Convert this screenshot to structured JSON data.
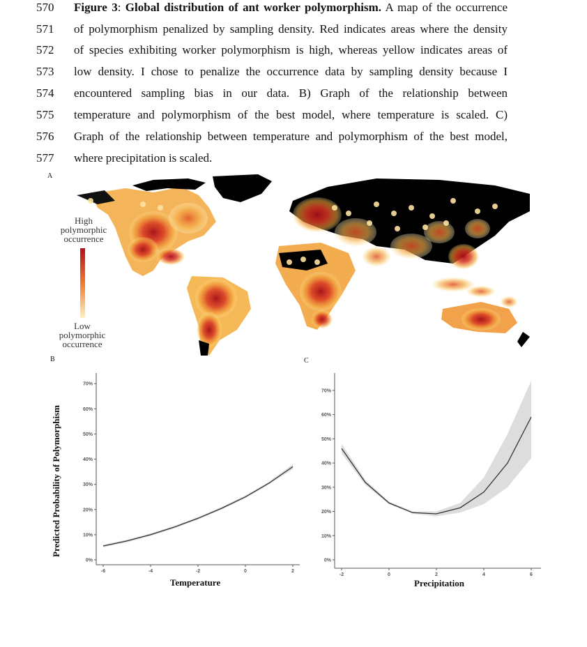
{
  "caption": {
    "lines": [
      {
        "num": "570",
        "bold1": "Figure 3",
        "plain1": ": ",
        "bold2": "Global distribution of ant worker polymorphism.",
        "rest": " A map of the occurrence"
      },
      {
        "num": "571",
        "text": "of polymorphism penalized by sampling density. Red indicates areas where the density"
      },
      {
        "num": "572",
        "text": "of species exhibiting worker polymorphism is high, whereas yellow indicates areas of"
      },
      {
        "num": "573",
        "text": "low density. I chose to penalize the occurrence data by sampling density because I"
      },
      {
        "num": "574",
        "text": "encountered sampling bias in our data. B) Graph of the relationship between"
      },
      {
        "num": "575",
        "text": "temperature and polymorphism of the best model, where temperature is scaled. C)"
      },
      {
        "num": "576",
        "text": "Graph of the relationship between temperature and polymorphism of the best model,"
      },
      {
        "num": "577",
        "text": "where precipitation is scaled."
      }
    ]
  },
  "panels": {
    "a": "A",
    "b": "B",
    "c": "C"
  },
  "map": {
    "legend_high": [
      "High",
      "polymorphic",
      "occurrence"
    ],
    "legend_low": [
      "Low",
      "polymorphic",
      "occurrence"
    ],
    "colors": {
      "high": "#b3101b",
      "mid": "#e8632b",
      "low": "#fdf3c0",
      "land_unsampled": "#000000"
    }
  },
  "chart_data": [
    {
      "type": "line",
      "xlabel": "Temperature",
      "ylabel": "Predicted Probability of Polymorphism",
      "xticks": [
        "-6",
        "-4",
        "-2",
        "0",
        "2"
      ],
      "yticks": [
        "0%",
        "10%",
        "20%",
        "30%",
        "40%",
        "50%",
        "60%",
        "70%"
      ],
      "xlim": [
        -6,
        2
      ],
      "ylim": [
        0,
        0.72
      ],
      "x": [
        -6,
        -5,
        -4,
        -3,
        -2,
        -1,
        0,
        1,
        2
      ],
      "y": [
        0.055,
        0.075,
        0.1,
        0.13,
        0.165,
        0.205,
        0.25,
        0.305,
        0.37
      ],
      "ci_low": [
        0.05,
        0.07,
        0.095,
        0.125,
        0.16,
        0.2,
        0.245,
        0.3,
        0.36
      ],
      "ci_high": [
        0.06,
        0.08,
        0.105,
        0.135,
        0.17,
        0.21,
        0.255,
        0.31,
        0.38
      ]
    },
    {
      "type": "line",
      "xlabel": "Precipitation",
      "ylabel": "",
      "xticks": [
        "-2",
        "0",
        "2",
        "4",
        "6"
      ],
      "yticks": [
        "0%",
        "10%",
        "20%",
        "30%",
        "40%",
        "50%",
        "60%",
        "70%"
      ],
      "xlim": [
        -2,
        6
      ],
      "ylim": [
        0,
        0.72
      ],
      "x": [
        -2,
        -1,
        0,
        1,
        2,
        3,
        4,
        5,
        6
      ],
      "y": [
        0.46,
        0.32,
        0.235,
        0.195,
        0.19,
        0.215,
        0.28,
        0.4,
        0.59
      ],
      "ci_low": [
        0.44,
        0.31,
        0.23,
        0.19,
        0.18,
        0.195,
        0.23,
        0.3,
        0.42
      ],
      "ci_high": [
        0.48,
        0.33,
        0.24,
        0.2,
        0.2,
        0.235,
        0.34,
        0.52,
        0.74
      ]
    }
  ]
}
